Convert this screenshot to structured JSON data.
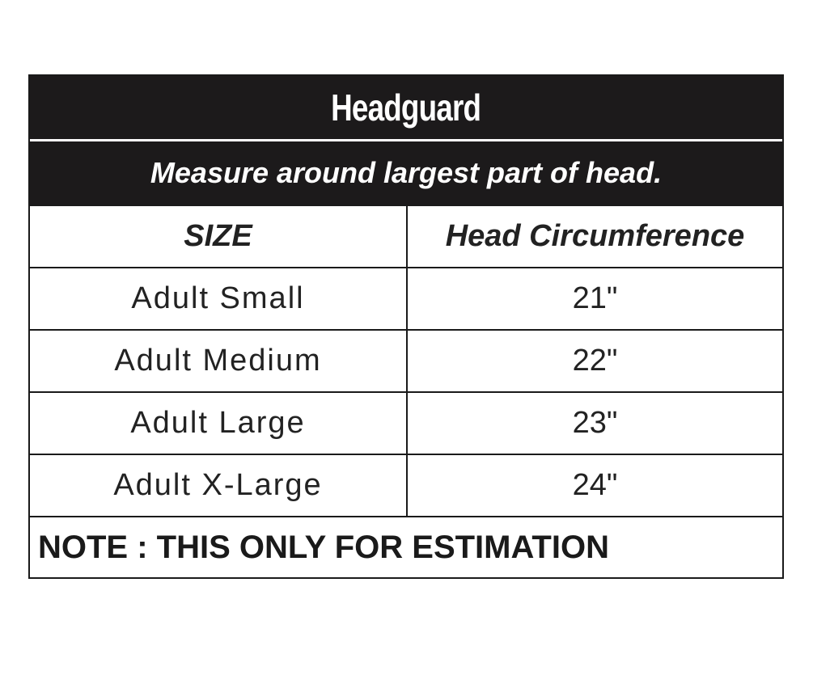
{
  "title": "Headguard",
  "subtitle": "Measure around largest part of head.",
  "headers": [
    "SIZE",
    "Head Circumference"
  ],
  "rows": [
    [
      "Adult Small",
      "21\""
    ],
    [
      "Adult Medium",
      "22\""
    ],
    [
      "Adult Large",
      "23\""
    ],
    [
      "Adult X-Large",
      "24\""
    ]
  ],
  "note": "NOTE : THIS ONLY FOR ESTIMATION"
}
